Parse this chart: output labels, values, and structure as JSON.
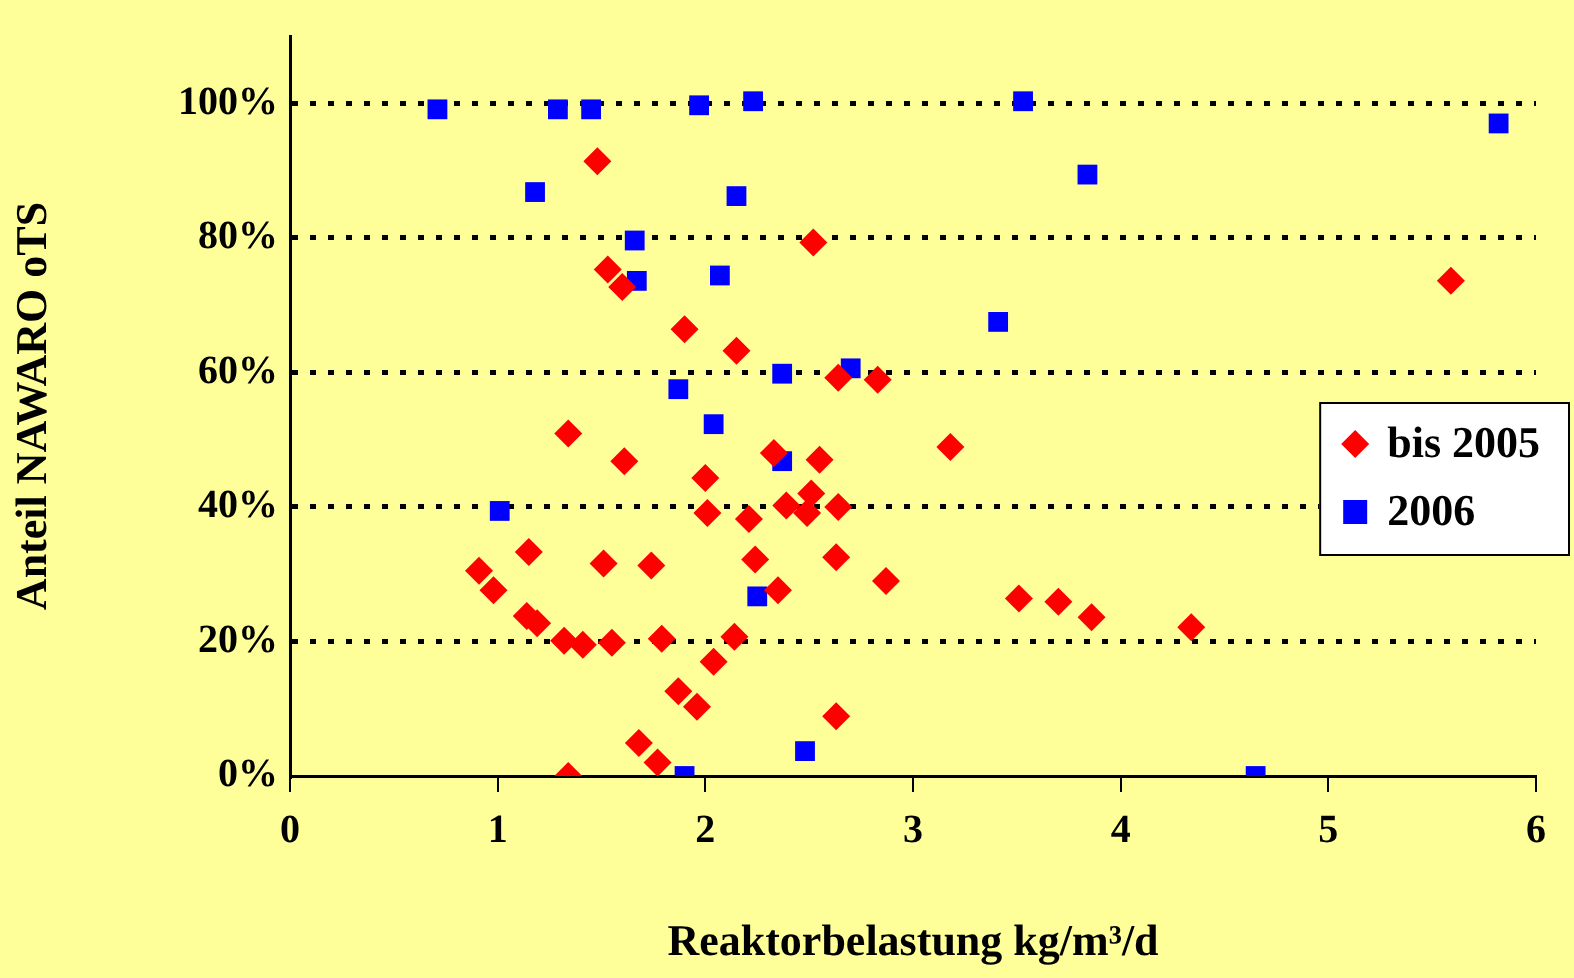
{
  "chart_data": {
    "type": "scatter",
    "xlabel": "Reaktorbelastung kg/m³/d",
    "ylabel": "Anteil NAWARO oTS",
    "xlim": [
      0,
      6
    ],
    "xticks": [
      0,
      1,
      2,
      3,
      4,
      5,
      6
    ],
    "ylim": [
      0,
      110
    ],
    "yticks": [
      {
        "value": 0,
        "label": "0%"
      },
      {
        "value": 20,
        "label": "20%"
      },
      {
        "value": 40,
        "label": "40%"
      },
      {
        "value": 60,
        "label": "60%"
      },
      {
        "value": 80,
        "label": "80%"
      },
      {
        "value": 100,
        "label": "100%"
      }
    ],
    "grid": "y",
    "legend": "right",
    "series": [
      {
        "name": "bis 2005",
        "color": "#ff0000",
        "marker": "diamond",
        "x": [
          1.48,
          1.53,
          1.6,
          2.52,
          1.9,
          2.15,
          2.64,
          2.83,
          1.34,
          1.61,
          2.33,
          3.18,
          2.0,
          2.55,
          2.01,
          2.21,
          2.39,
          2.49,
          2.51,
          2.64,
          0.91,
          0.98,
          1.15,
          1.51,
          1.74,
          2.24,
          2.63,
          2.35,
          2.87,
          1.14,
          1.19,
          1.32,
          1.41,
          1.55,
          1.79,
          2.14,
          2.04,
          1.87,
          1.96,
          2.63,
          1.68,
          1.77,
          1.34,
          3.51,
          3.7,
          3.86,
          4.34,
          5.59
        ],
        "values": [
          91.4,
          75.3,
          72.7,
          79.3,
          66.4,
          63.2,
          59.2,
          58.9,
          50.9,
          46.8,
          48,
          48.9,
          44.3,
          47,
          39.1,
          38.2,
          40.2,
          39.1,
          42,
          40,
          30.5,
          27.6,
          33.3,
          31.6,
          31.3,
          32.2,
          32.5,
          27.6,
          29,
          23.8,
          22.7,
          20.1,
          19.5,
          19.8,
          20.4,
          20.7,
          17,
          12.6,
          10.3,
          8.9,
          4.9,
          2,
          0,
          26.4,
          25.9,
          23.6,
          22.1,
          73.6
        ]
      },
      {
        "name": "2006",
        "color": "#0000ff",
        "marker": "square",
        "x": [
          0.71,
          1.29,
          1.45,
          1.97,
          2.23,
          3.53,
          5.82,
          1.18,
          2.15,
          1.66,
          1.67,
          2.07,
          2.37,
          2.7,
          1.87,
          2.04,
          2.37,
          1.01,
          2.25,
          1.9,
          2.48,
          4.65,
          3.84,
          3.41
        ],
        "values": [
          99.1,
          99.1,
          99.1,
          99.7,
          100.3,
          100.3,
          97,
          86.8,
          86.2,
          79.6,
          73.6,
          74.4,
          59.8,
          60.6,
          57.5,
          52.3,
          46.8,
          39.4,
          26.7,
          0,
          3.7,
          0,
          89.4,
          67.5
        ]
      }
    ]
  }
}
